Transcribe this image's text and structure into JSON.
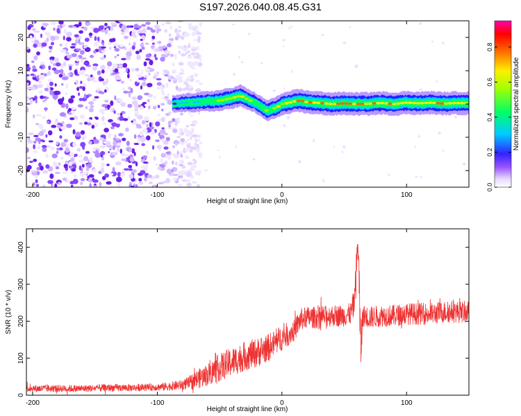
{
  "title": "S197.2026.040.08.45.G31",
  "colors": {
    "snr_line": "#ee3333",
    "dots": "#7a22ee"
  },
  "colorbar": {
    "label": "Normalized spectral amplitude",
    "ticks": [
      "0.0",
      "0.2",
      "0.4",
      "0.6",
      "0.8"
    ],
    "range": [
      0,
      0.95
    ]
  },
  "chart_data": [
    {
      "type": "heatmap",
      "title": "",
      "xlabel": "Height of straight line (km)",
      "ylabel": "Frequency (Hz)",
      "xlim": [
        -205,
        150
      ],
      "ylim": [
        -25,
        25
      ],
      "xticks": [
        -200,
        -100,
        0,
        100
      ],
      "xtick_labels": [
        "-200",
        "-100",
        "0",
        "100"
      ],
      "yticks": [
        -20,
        -10,
        0,
        10,
        20
      ],
      "ytick_labels": [
        "-20",
        "-10",
        "0",
        "10",
        "20"
      ],
      "noise_region_x": [
        -205,
        -75
      ],
      "ridge": {
        "x": [
          -88,
          -80,
          -70,
          -60,
          -50,
          -40,
          -33,
          -28,
          -22,
          -16,
          -12,
          -8,
          -4,
          0,
          5,
          10,
          15,
          20,
          30,
          40,
          50,
          60,
          70,
          80,
          90,
          100,
          110,
          120,
          130,
          140,
          150
        ],
        "freq_hz": [
          0,
          0.3,
          0.5,
          0.8,
          1,
          1.8,
          2.5,
          1.5,
          0.5,
          -1,
          -2,
          -1.5,
          -1,
          0,
          0.3,
          0.8,
          1,
          0.6,
          0.3,
          0,
          0.2,
          0,
          0.1,
          0.3,
          0,
          0.4,
          0.2,
          0.4,
          0.1,
          0.3,
          0.2
        ],
        "amplitude": [
          0.2,
          0.4,
          0.5,
          0.6,
          0.7,
          0.7,
          0.8,
          0.7,
          0.6,
          0.65,
          0.7,
          0.7,
          0.75,
          0.8,
          0.85,
          0.85,
          0.9,
          0.9,
          0.9,
          0.9,
          0.9,
          0.9,
          0.9,
          0.9,
          0.9,
          0.9,
          0.9,
          0.9,
          0.9,
          0.9,
          0.9
        ]
      }
    },
    {
      "type": "line",
      "title": "",
      "xlabel": "Height of straight line (km)",
      "ylabel": "SNR (10 * v/v)",
      "xlim": [
        -205,
        150
      ],
      "ylim": [
        0,
        450
      ],
      "xticks": [
        -200,
        -100,
        0,
        100
      ],
      "xtick_labels": [
        "-200",
        "-100",
        "0",
        "100"
      ],
      "yticks": [
        0,
        100,
        200,
        300,
        400
      ],
      "ytick_labels": [
        "0",
        "100",
        "200",
        "300",
        "400"
      ],
      "series": [
        {
          "name": "SNR",
          "x": [
            -205,
            -180,
            -160,
            -140,
            -120,
            -100,
            -90,
            -80,
            -75,
            -70,
            -60,
            -50,
            -40,
            -30,
            -20,
            -10,
            0,
            10,
            15,
            20,
            30,
            40,
            50,
            55,
            58,
            60,
            61,
            62,
            63,
            65,
            70,
            80,
            90,
            100,
            110,
            120,
            130,
            140,
            150
          ],
          "y_mean": [
            18,
            18,
            18,
            20,
            20,
            22,
            24,
            28,
            32,
            40,
            55,
            75,
            90,
            105,
            115,
            130,
            155,
            175,
            205,
            210,
            210,
            215,
            215,
            220,
            250,
            350,
            420,
            300,
            120,
            215,
            210,
            215,
            215,
            220,
            220,
            220,
            225,
            225,
            225
          ],
          "y_spread": [
            10,
            10,
            10,
            10,
            10,
            10,
            12,
            14,
            18,
            25,
            30,
            38,
            40,
            40,
            40,
            38,
            35,
            30,
            30,
            30,
            30,
            30,
            30,
            30,
            40,
            60,
            30,
            80,
            90,
            30,
            30,
            30,
            30,
            30,
            30,
            30,
            30,
            30,
            30
          ]
        }
      ]
    }
  ]
}
